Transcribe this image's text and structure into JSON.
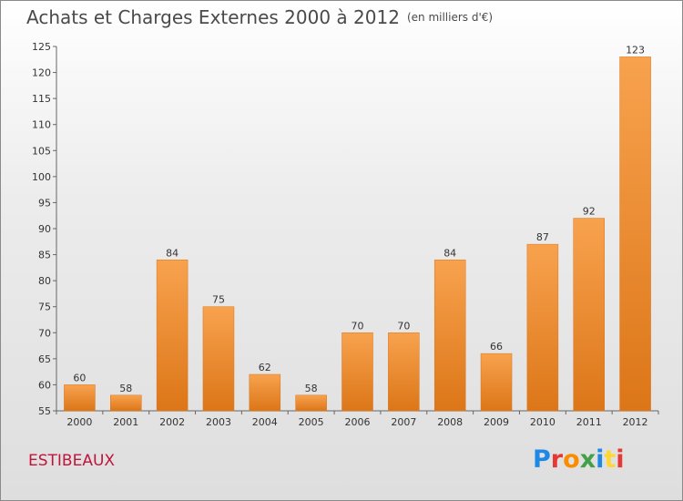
{
  "title": "Achats et Charges Externes 2000 à 2012",
  "subtitle": "(en milliers d'€)",
  "commune": "ESTIBEAUX",
  "logo": {
    "letters": [
      "P",
      "r",
      "o",
      "x",
      "i",
      "t",
      "i"
    ],
    "colors": [
      "#1e88e5",
      "#e53935",
      "#fb8c00",
      "#43a047",
      "#1e88e5",
      "#fdd835",
      "#e53935"
    ]
  },
  "chart_data": {
    "type": "bar",
    "categories": [
      "2000",
      "2001",
      "2002",
      "2003",
      "2004",
      "2005",
      "2006",
      "2007",
      "2008",
      "2009",
      "2010",
      "2011",
      "2012"
    ],
    "values": [
      60,
      58,
      84,
      75,
      62,
      58,
      70,
      70,
      84,
      66,
      87,
      92,
      123
    ],
    "ylim": [
      55,
      125
    ],
    "yticks": [
      55,
      60,
      65,
      70,
      75,
      80,
      85,
      90,
      95,
      100,
      105,
      110,
      115,
      120,
      125
    ],
    "grid": false,
    "bar_color": "#f0922e"
  }
}
